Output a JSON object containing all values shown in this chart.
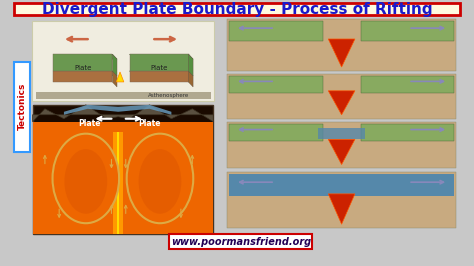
{
  "title": "Divergent Plate Boundary - Process of Rifting",
  "title_fontsize": 11,
  "title_color": "#1a1acc",
  "title_bg": "#fffae0",
  "title_border": "#cc0000",
  "bg_color": "#c8c8c8",
  "website": "www.poormansfriend.org",
  "website_fontsize": 7,
  "website_border": "#cc0000",
  "website_color": "#220055",
  "tectonics_color": "#cc0000",
  "tectonics_bg": "#ffffff",
  "tectonics_border": "#3399ff",
  "arrow_color": "#8888bb",
  "top_panel_bg": "#f0ede0",
  "top_panel_border": "#ccccaa",
  "green_plate": "#8cc870",
  "brown_plate": "#c89060",
  "gray_plate": "#b0a890",
  "magma_color": "#dd2200",
  "orange_mantle": "#ee6600",
  "yellow_hot": "#ffdd00",
  "blue_water": "#6699bb",
  "dark_mantle": "#1a0a00",
  "convect_stroke": "#ddaa44",
  "white_arrow": "#ffffff",
  "plate_text": "#ffffff",
  "right_tan": "#c8aa80",
  "right_green": "#88aa60",
  "right_blue": "#5588aa",
  "stage_magma": "#cc2200"
}
